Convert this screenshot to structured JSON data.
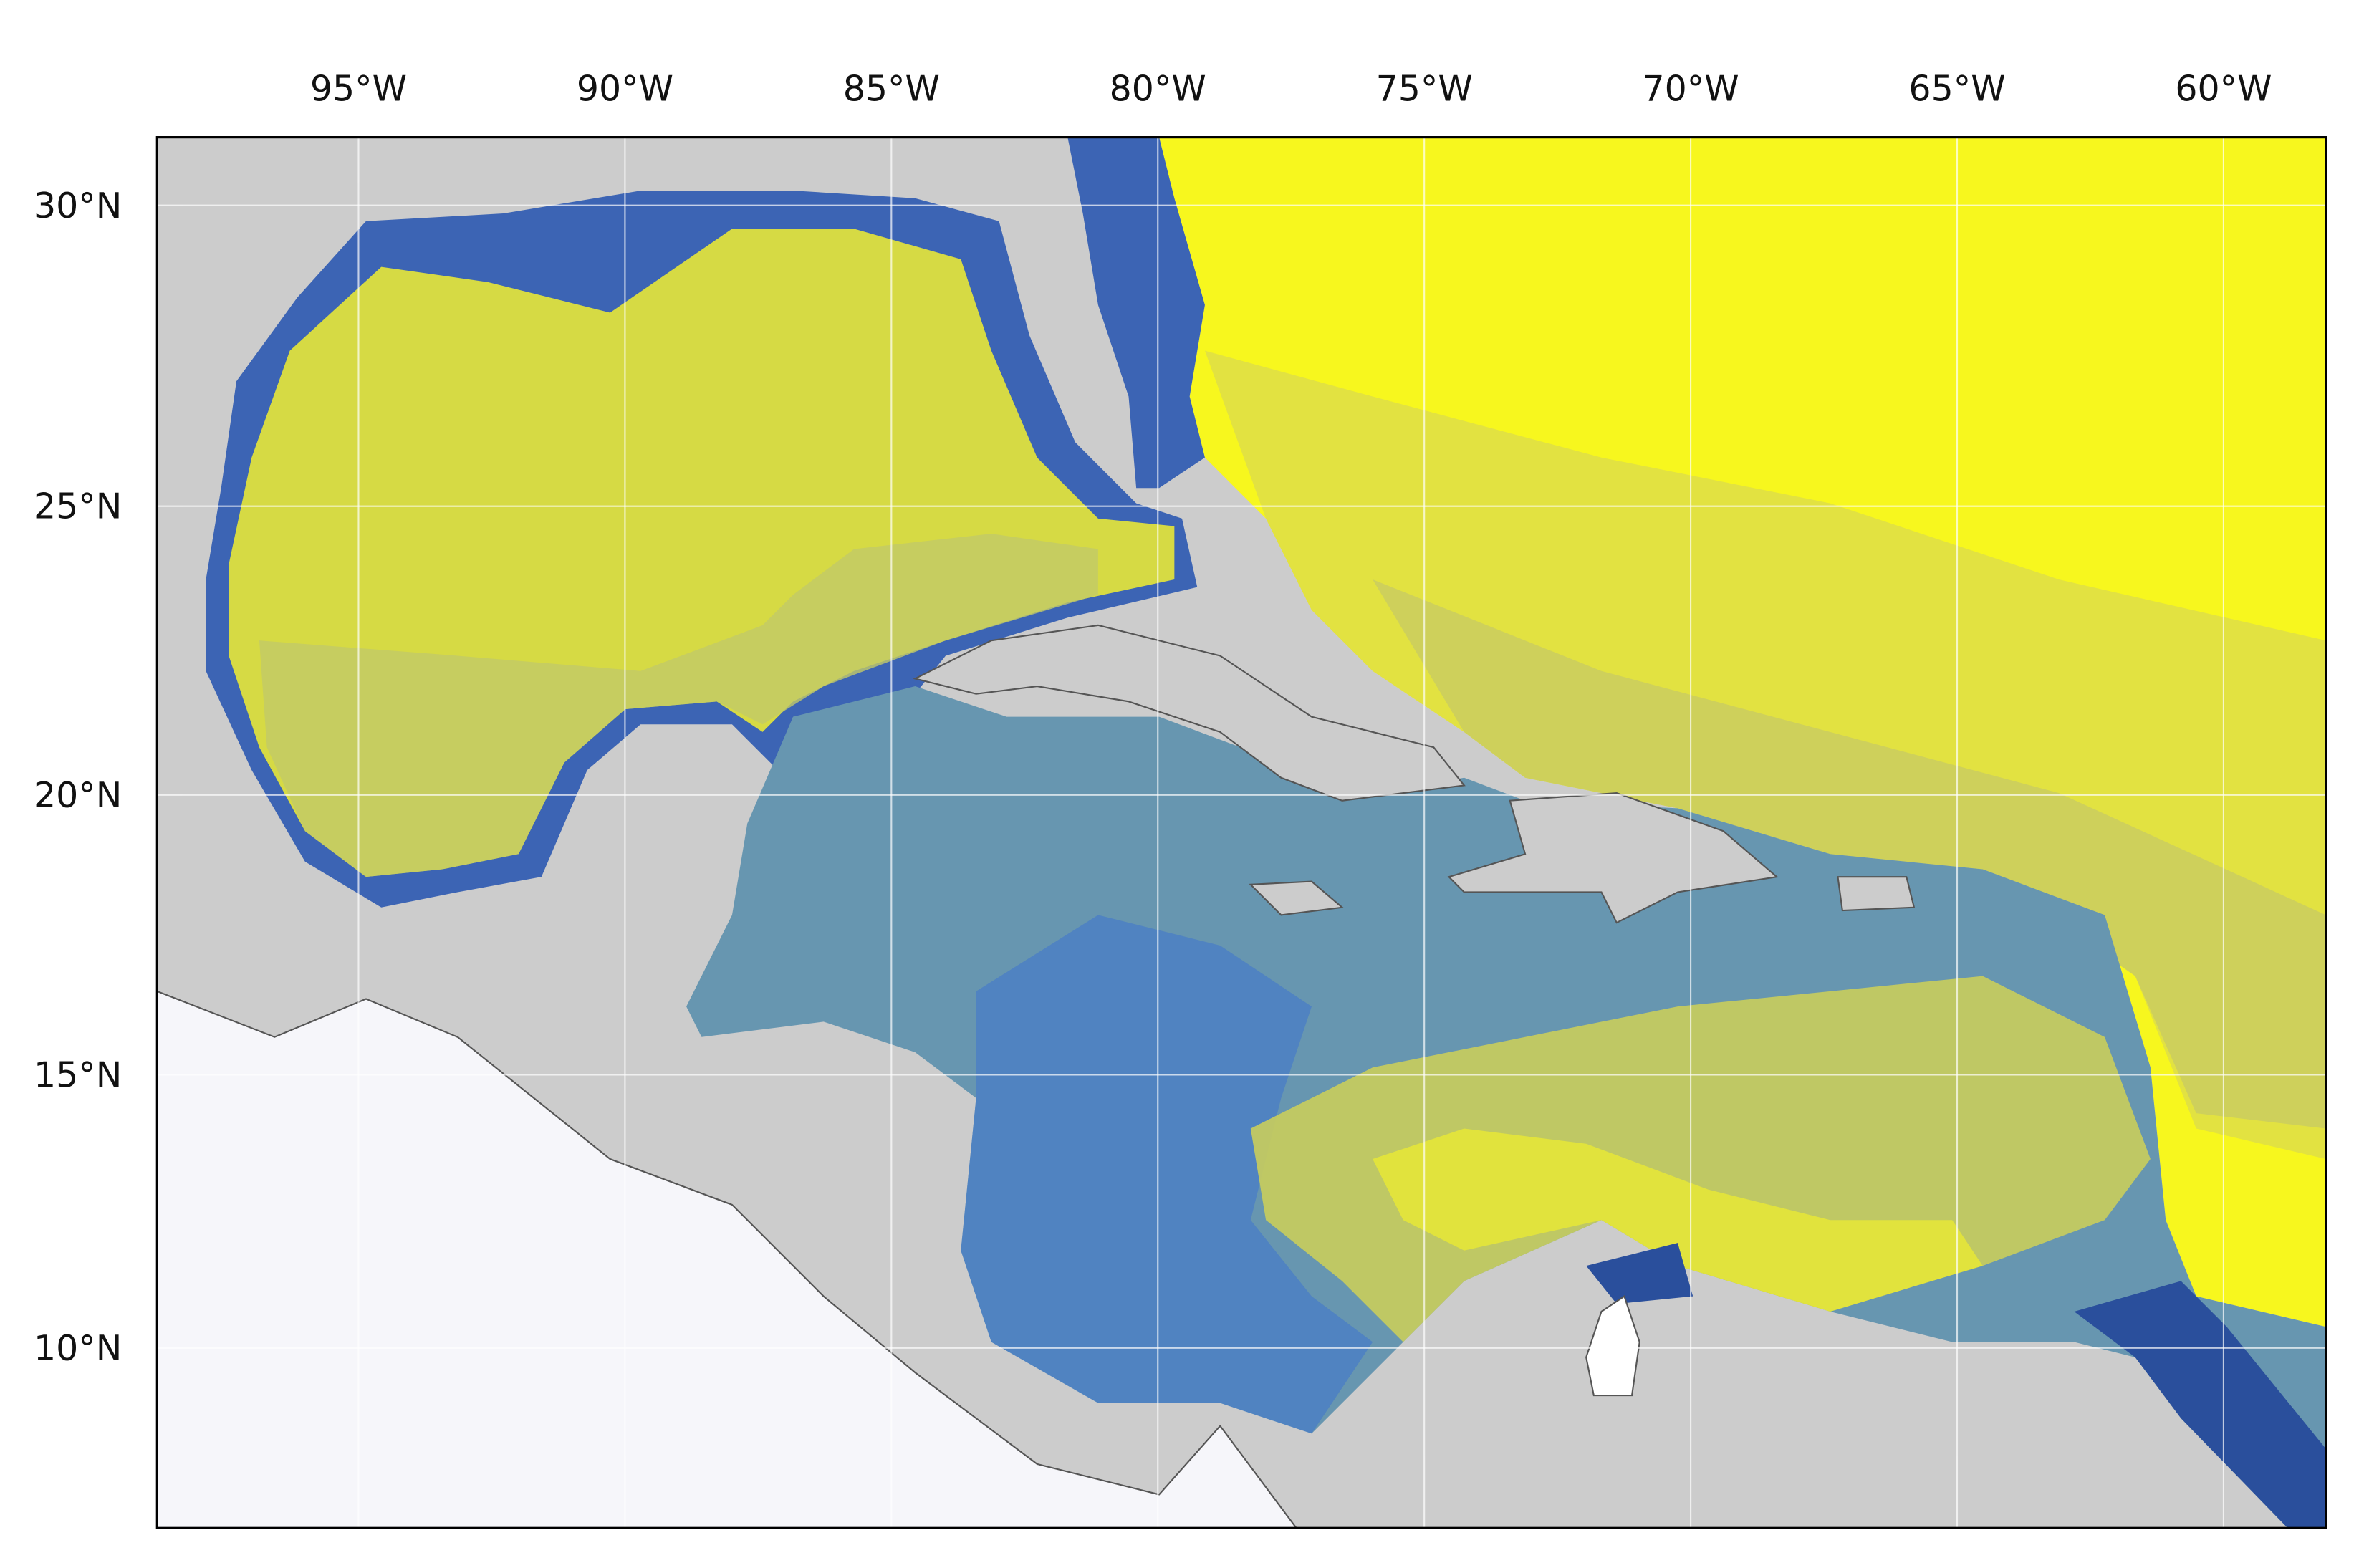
{
  "map": {
    "xlim": [
      -98.78,
      -58.08
    ],
    "ylim": [
      6.66,
      31.1
    ],
    "xticks": [
      {
        "value": -95,
        "label": "95°W"
      },
      {
        "value": -90,
        "label": "90°W"
      },
      {
        "value": -85,
        "label": "85°W"
      },
      {
        "value": -80,
        "label": "80°W"
      },
      {
        "value": -75,
        "label": "75°W"
      },
      {
        "value": -70,
        "label": "70°W"
      },
      {
        "value": -65,
        "label": "65°W"
      },
      {
        "value": -60,
        "label": "60°W"
      }
    ],
    "yticks": [
      {
        "value": 10,
        "label": "10°N"
      },
      {
        "value": 15,
        "label": "15°N"
      },
      {
        "value": 20,
        "label": "20°N"
      },
      {
        "value": 25,
        "label": "25°N"
      },
      {
        "value": 30,
        "label": "30°N"
      }
    ],
    "grid": true
  }
}
